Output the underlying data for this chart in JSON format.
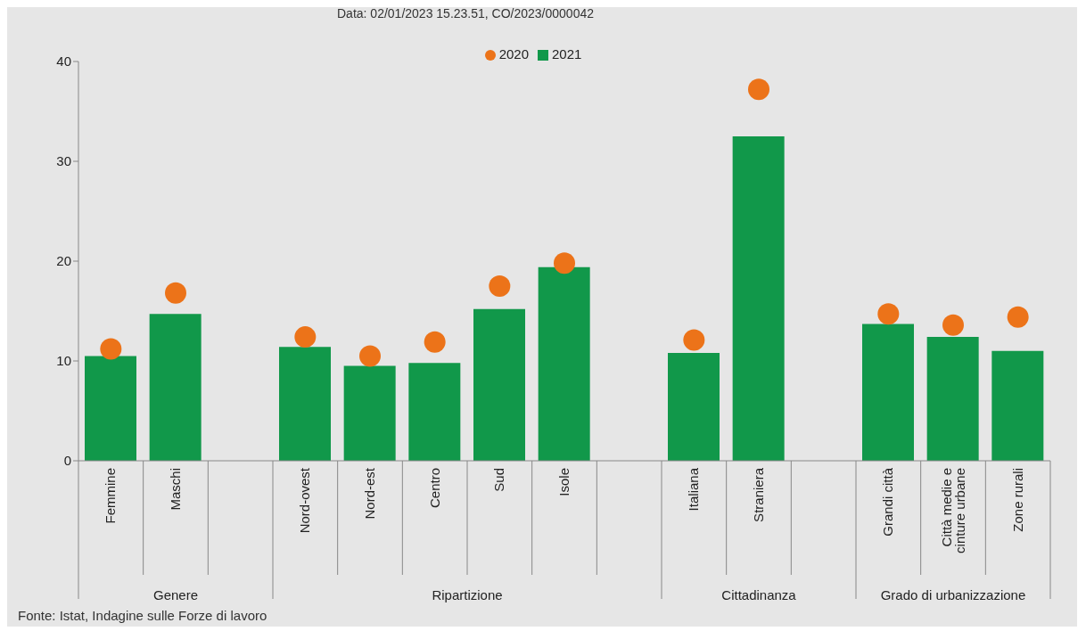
{
  "chart_data": {
    "type": "bar",
    "categories": [
      "Femmine",
      "Maschi",
      null,
      "Nord-ovest",
      "Nord-est",
      "Centro",
      "Sud",
      "Isole",
      null,
      "Italiana",
      "Straniera",
      null,
      "Grandi città",
      "Città medie e cinture urbane",
      "Zone rurali"
    ],
    "series": [
      {
        "name": "2021",
        "color": "#11984a",
        "values": [
          10.5,
          14.7,
          null,
          11.4,
          9.5,
          9.8,
          15.2,
          19.4,
          null,
          10.8,
          32.5,
          null,
          13.7,
          12.4,
          11.0
        ]
      },
      {
        "name": "2020",
        "type": "scatter",
        "color": "#ec7319",
        "values": [
          11.2,
          16.8,
          null,
          12.4,
          10.5,
          11.9,
          17.5,
          19.8,
          null,
          12.1,
          37.2,
          null,
          14.7,
          13.6,
          14.4
        ]
      }
    ],
    "ylim": [
      0,
      40
    ],
    "yticks": [
      0,
      10,
      20,
      30,
      40
    ],
    "grid": false,
    "legend": "top",
    "marker": "circle",
    "annotations": [
      "Data: 02/01/2023 15.23.51, CO/2023/0000042",
      "Fonte: Istat, Indagine sulle Forze di lavoro",
      "Genere",
      "Ripartizione",
      "Cittadinanza",
      "Grado di urbanizzazione"
    ]
  }
}
